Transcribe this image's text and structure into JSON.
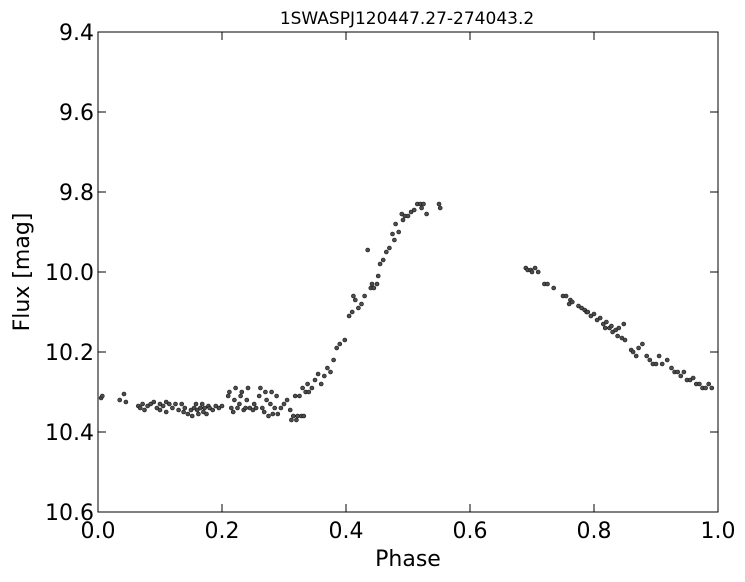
{
  "chart_data": {
    "type": "scatter",
    "title": "1SWASPJ120447.27-274043.2",
    "xlabel": "Phase",
    "ylabel": "Flux [mag]",
    "xlim": [
      0.0,
      1.0
    ],
    "ylim": [
      9.4,
      10.6
    ],
    "y_inverted": true,
    "grid": false,
    "legend": "none",
    "x_ticks": [
      "0.0",
      "0.2",
      "0.4",
      "0.6",
      "0.8",
      "1.0"
    ],
    "y_ticks": [
      "9.4",
      "9.6",
      "9.8",
      "10.0",
      "10.2",
      "10.4",
      "10.6"
    ],
    "marker_color": "#4d4d4d",
    "points": [
      [
        0.005,
        10.315
      ],
      [
        0.007,
        10.31
      ],
      [
        0.035,
        10.32
      ],
      [
        0.042,
        10.305
      ],
      [
        0.045,
        10.325
      ],
      [
        0.065,
        10.335
      ],
      [
        0.068,
        10.34
      ],
      [
        0.072,
        10.33
      ],
      [
        0.075,
        10.345
      ],
      [
        0.08,
        10.335
      ],
      [
        0.085,
        10.33
      ],
      [
        0.09,
        10.325
      ],
      [
        0.095,
        10.34
      ],
      [
        0.1,
        10.33
      ],
      [
        0.1,
        10.345
      ],
      [
        0.105,
        10.335
      ],
      [
        0.11,
        10.325
      ],
      [
        0.11,
        10.35
      ],
      [
        0.115,
        10.33
      ],
      [
        0.12,
        10.34
      ],
      [
        0.125,
        10.33
      ],
      [
        0.13,
        10.345
      ],
      [
        0.135,
        10.33
      ],
      [
        0.138,
        10.35
      ],
      [
        0.14,
        10.34
      ],
      [
        0.145,
        10.355
      ],
      [
        0.15,
        10.345
      ],
      [
        0.152,
        10.36
      ],
      [
        0.155,
        10.34
      ],
      [
        0.158,
        10.33
      ],
      [
        0.16,
        10.345
      ],
      [
        0.162,
        10.355
      ],
      [
        0.165,
        10.34
      ],
      [
        0.168,
        10.33
      ],
      [
        0.17,
        10.35
      ],
      [
        0.172,
        10.34
      ],
      [
        0.175,
        10.355
      ],
      [
        0.178,
        10.335
      ],
      [
        0.18,
        10.34
      ],
      [
        0.185,
        10.345
      ],
      [
        0.19,
        10.335
      ],
      [
        0.195,
        10.34
      ],
      [
        0.2,
        10.335
      ],
      [
        0.21,
        10.31
      ],
      [
        0.212,
        10.3
      ],
      [
        0.215,
        10.34
      ],
      [
        0.218,
        10.35
      ],
      [
        0.22,
        10.32
      ],
      [
        0.222,
        10.29
      ],
      [
        0.225,
        10.34
      ],
      [
        0.228,
        10.33
      ],
      [
        0.23,
        10.31
      ],
      [
        0.232,
        10.3
      ],
      [
        0.235,
        10.345
      ],
      [
        0.238,
        10.34
      ],
      [
        0.24,
        10.32
      ],
      [
        0.242,
        10.29
      ],
      [
        0.245,
        10.34
      ],
      [
        0.25,
        10.345
      ],
      [
        0.252,
        10.33
      ],
      [
        0.255,
        10.34
      ],
      [
        0.26,
        10.31
      ],
      [
        0.262,
        10.29
      ],
      [
        0.265,
        10.34
      ],
      [
        0.268,
        10.35
      ],
      [
        0.27,
        10.3
      ],
      [
        0.272,
        10.32
      ],
      [
        0.275,
        10.36
      ],
      [
        0.278,
        10.33
      ],
      [
        0.28,
        10.3
      ],
      [
        0.282,
        10.355
      ],
      [
        0.285,
        10.34
      ],
      [
        0.288,
        10.31
      ],
      [
        0.29,
        10.355
      ],
      [
        0.295,
        10.34
      ],
      [
        0.3,
        10.33
      ],
      [
        0.305,
        10.32
      ],
      [
        0.31,
        10.345
      ],
      [
        0.312,
        10.37
      ],
      [
        0.315,
        10.36
      ],
      [
        0.318,
        10.31
      ],
      [
        0.32,
        10.37
      ],
      [
        0.322,
        10.36
      ],
      [
        0.325,
        10.31
      ],
      [
        0.328,
        10.36
      ],
      [
        0.33,
        10.29
      ],
      [
        0.332,
        10.36
      ],
      [
        0.335,
        10.3
      ],
      [
        0.338,
        10.28
      ],
      [
        0.34,
        10.3
      ],
      [
        0.345,
        10.29
      ],
      [
        0.35,
        10.27
      ],
      [
        0.355,
        10.255
      ],
      [
        0.36,
        10.28
      ],
      [
        0.365,
        10.26
      ],
      [
        0.37,
        10.24
      ],
      [
        0.375,
        10.25
      ],
      [
        0.38,
        10.22
      ],
      [
        0.385,
        10.19
      ],
      [
        0.39,
        10.18
      ],
      [
        0.398,
        10.17
      ],
      [
        0.405,
        10.11
      ],
      [
        0.41,
        10.1
      ],
      [
        0.412,
        10.06
      ],
      [
        0.415,
        10.07
      ],
      [
        0.42,
        10.09
      ],
      [
        0.425,
        10.08
      ],
      [
        0.43,
        10.06
      ],
      [
        0.435,
        9.945
      ],
      [
        0.44,
        10.04
      ],
      [
        0.442,
        10.03
      ],
      [
        0.445,
        10.04
      ],
      [
        0.45,
        10.03
      ],
      [
        0.452,
        10.01
      ],
      [
        0.455,
        9.98
      ],
      [
        0.46,
        9.97
      ],
      [
        0.465,
        9.95
      ],
      [
        0.47,
        9.94
      ],
      [
        0.475,
        9.905
      ],
      [
        0.478,
        9.92
      ],
      [
        0.48,
        9.88
      ],
      [
        0.485,
        9.9
      ],
      [
        0.49,
        9.855
      ],
      [
        0.492,
        9.87
      ],
      [
        0.495,
        9.86
      ],
      [
        0.5,
        9.86
      ],
      [
        0.505,
        9.85
      ],
      [
        0.51,
        9.845
      ],
      [
        0.515,
        9.83
      ],
      [
        0.52,
        9.83
      ],
      [
        0.522,
        9.84
      ],
      [
        0.525,
        9.83
      ],
      [
        0.53,
        9.855
      ],
      [
        0.55,
        9.83
      ],
      [
        0.552,
        9.84
      ],
      [
        0.69,
        9.99
      ],
      [
        0.693,
        9.995
      ],
      [
        0.698,
        9.995
      ],
      [
        0.7,
        10.0
      ],
      [
        0.705,
        9.99
      ],
      [
        0.71,
        10.0
      ],
      [
        0.72,
        10.03
      ],
      [
        0.725,
        10.03
      ],
      [
        0.735,
        10.04
      ],
      [
        0.75,
        10.06
      ],
      [
        0.755,
        10.06
      ],
      [
        0.76,
        10.08
      ],
      [
        0.762,
        10.07
      ],
      [
        0.765,
        10.075
      ],
      [
        0.775,
        10.085
      ],
      [
        0.78,
        10.09
      ],
      [
        0.785,
        10.095
      ],
      [
        0.788,
        10.1
      ],
      [
        0.79,
        10.1
      ],
      [
        0.795,
        10.11
      ],
      [
        0.8,
        10.105
      ],
      [
        0.805,
        10.12
      ],
      [
        0.81,
        10.115
      ],
      [
        0.815,
        10.13
      ],
      [
        0.818,
        10.14
      ],
      [
        0.82,
        10.125
      ],
      [
        0.825,
        10.14
      ],
      [
        0.828,
        10.135
      ],
      [
        0.83,
        10.15
      ],
      [
        0.835,
        10.145
      ],
      [
        0.838,
        10.16
      ],
      [
        0.84,
        10.14
      ],
      [
        0.845,
        10.165
      ],
      [
        0.848,
        10.13
      ],
      [
        0.85,
        10.17
      ],
      [
        0.86,
        10.195
      ],
      [
        0.863,
        10.2
      ],
      [
        0.868,
        10.21
      ],
      [
        0.872,
        10.19
      ],
      [
        0.878,
        10.18
      ],
      [
        0.885,
        10.21
      ],
      [
        0.89,
        10.22
      ],
      [
        0.895,
        10.23
      ],
      [
        0.9,
        10.23
      ],
      [
        0.905,
        10.21
      ],
      [
        0.91,
        10.23
      ],
      [
        0.918,
        10.22
      ],
      [
        0.925,
        10.24
      ],
      [
        0.93,
        10.25
      ],
      [
        0.935,
        10.25
      ],
      [
        0.94,
        10.26
      ],
      [
        0.945,
        10.25
      ],
      [
        0.95,
        10.27
      ],
      [
        0.955,
        10.27
      ],
      [
        0.96,
        10.265
      ],
      [
        0.965,
        10.28
      ],
      [
        0.97,
        10.28
      ],
      [
        0.975,
        10.29
      ],
      [
        0.98,
        10.29
      ],
      [
        0.985,
        10.28
      ],
      [
        0.99,
        10.29
      ]
    ]
  }
}
